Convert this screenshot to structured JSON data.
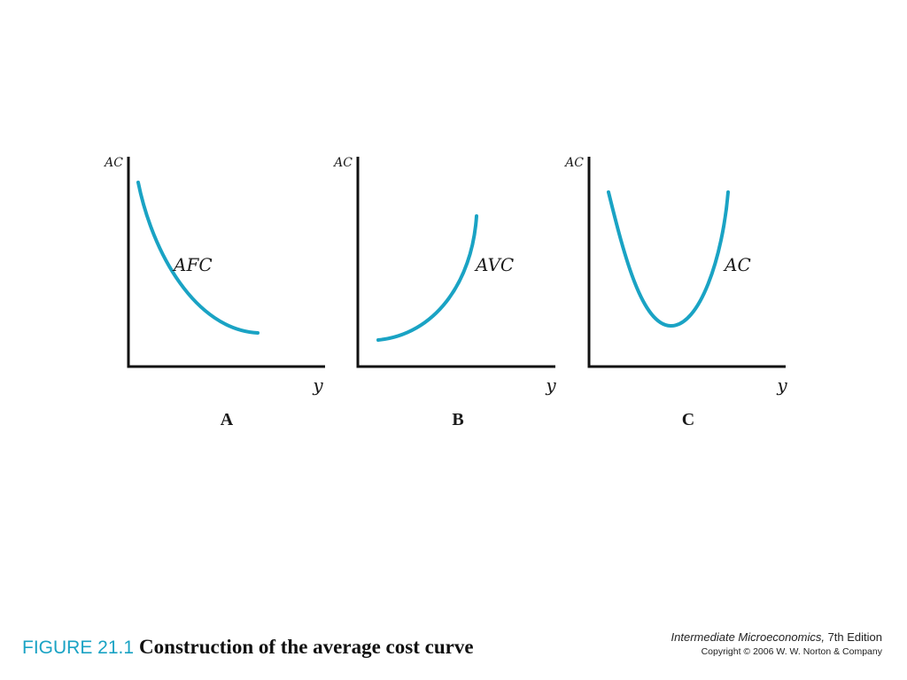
{
  "colors": {
    "curve": "#1aa3c4",
    "figure_number": "#1aa3c4"
  },
  "panels": [
    {
      "letter": "A",
      "y_axis_title": "AC",
      "x_axis_title": "y",
      "curve_label": "AFC",
      "curve_shape": "decreasing"
    },
    {
      "letter": "B",
      "y_axis_title": "AC",
      "x_axis_title": "y",
      "curve_label": "AVC",
      "curve_shape": "increasing"
    },
    {
      "letter": "C",
      "y_axis_title": "AC",
      "x_axis_title": "y",
      "curve_label": "AC",
      "curve_shape": "u-shaped"
    }
  ],
  "caption": {
    "figure_number": "FIGURE 21.1",
    "title": "Construction of the average cost curve"
  },
  "credits": {
    "book_title": "Intermediate Microeconomics,",
    "edition": " 7th Edition",
    "copyright": "Copyright © 2006 W. W. Norton & Company"
  }
}
